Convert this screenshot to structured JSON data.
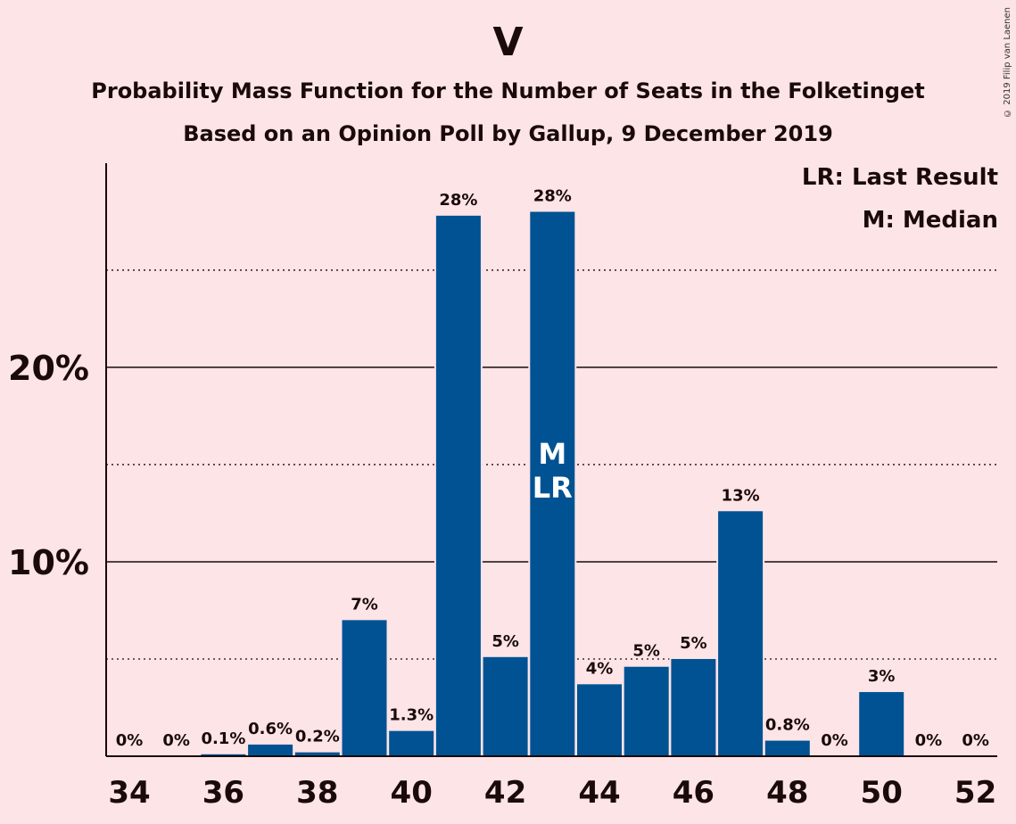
{
  "title": "V",
  "subtitle1": "Probability Mass Function for the Number of Seats in the Folketinget",
  "subtitle2": "Based on an Opinion Poll by Gallup, 9 December 2019",
  "copyright": "© 2019 Filip van Laenen",
  "legend": {
    "lr": "LR: Last Result",
    "m": "M: Median"
  },
  "colors": {
    "bar": "#005292",
    "background": "#fde4e7",
    "text": "#1a0a0a"
  },
  "chart_data": {
    "type": "bar",
    "x": [
      34,
      35,
      36,
      37,
      38,
      39,
      40,
      41,
      42,
      43,
      44,
      45,
      46,
      47,
      48,
      49,
      50,
      51,
      52
    ],
    "values": [
      0,
      0,
      0.1,
      0.6,
      0.2,
      7,
      1.3,
      27.8,
      5.1,
      28,
      3.7,
      4.6,
      5,
      12.6,
      0.8,
      0,
      3.3,
      0,
      0
    ],
    "labels": [
      "0%",
      "0%",
      "0.1%",
      "0.6%",
      "0.2%",
      "7%",
      "1.3%",
      "28%",
      "5%",
      "28%",
      "4%",
      "5%",
      "5%",
      "13%",
      "0.8%",
      "0%",
      "3%",
      "0%",
      "0%"
    ],
    "xticks": [
      "34",
      "36",
      "38",
      "40",
      "42",
      "44",
      "46",
      "48",
      "50",
      "52"
    ],
    "yticks": [
      "10%",
      "20%"
    ],
    "ylim": [
      0,
      30.5
    ],
    "median_seat": 43,
    "last_result_seat": 43,
    "median_mark": "M",
    "last_result_mark": "LR",
    "grid": {
      "solid": [
        10,
        20
      ],
      "dotted": [
        5,
        15,
        25
      ]
    },
    "legend_position": "top-right"
  }
}
